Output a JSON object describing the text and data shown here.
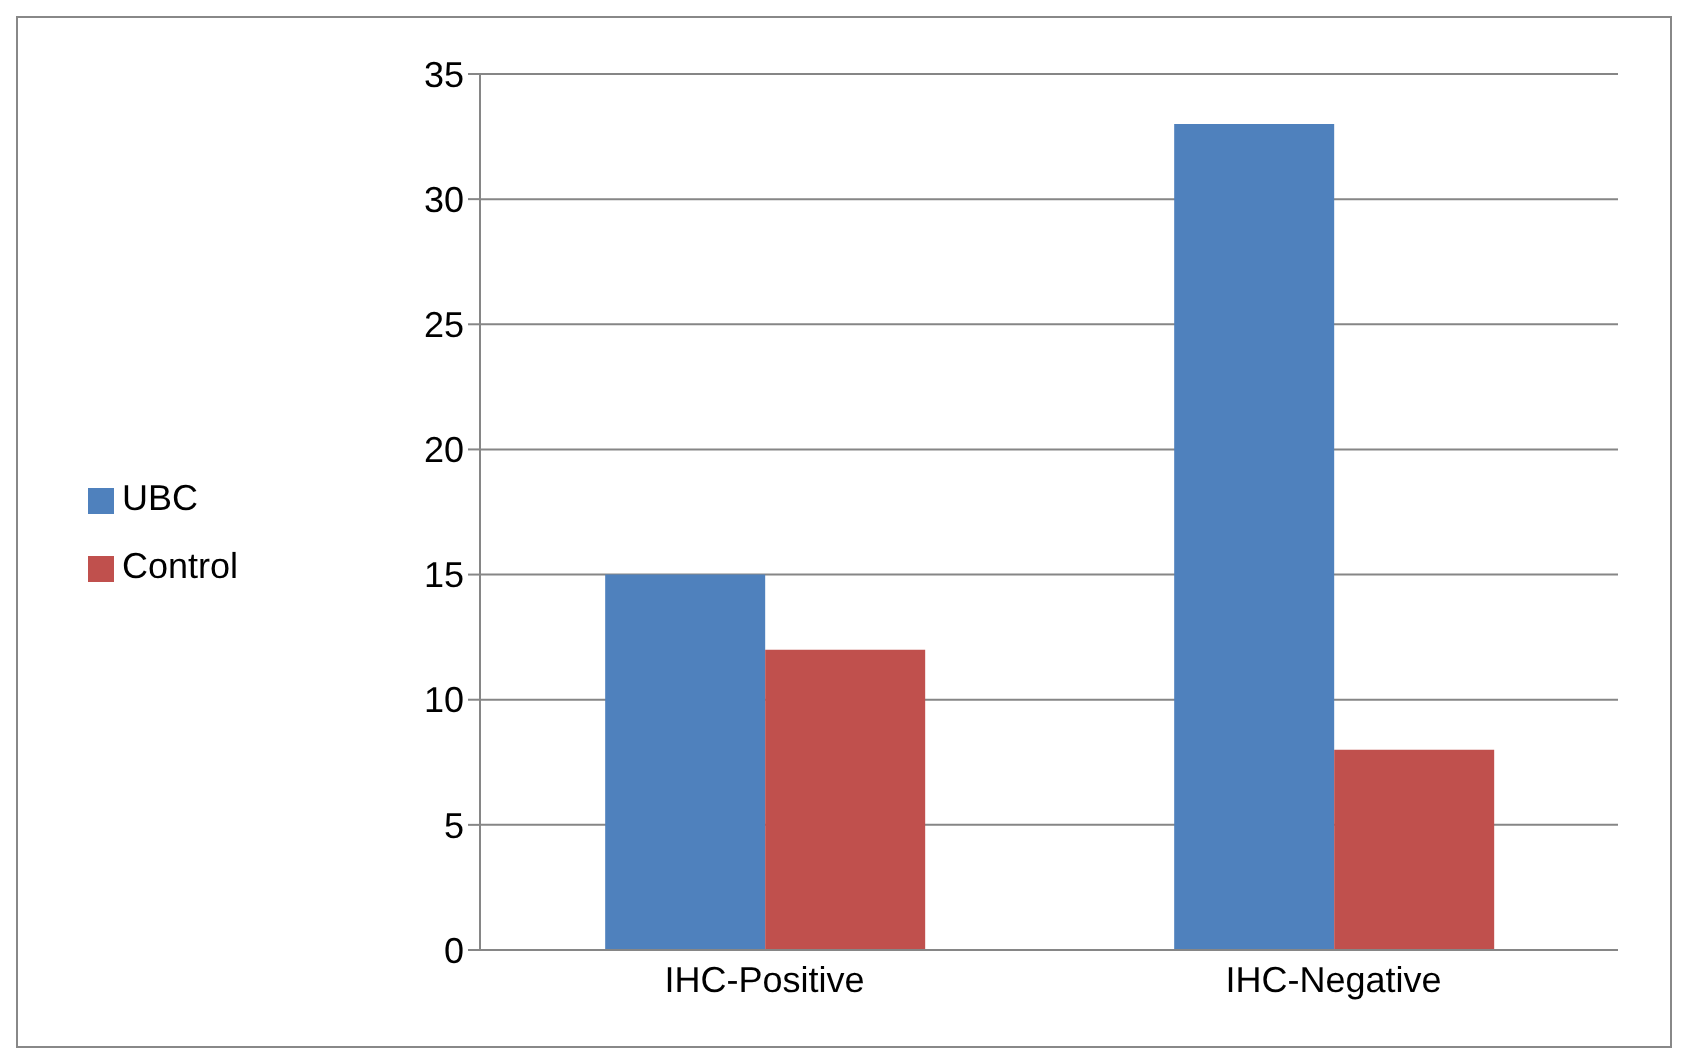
{
  "chart_data": {
    "type": "bar",
    "categories": [
      "IHC-Positive",
      "IHC-Negative"
    ],
    "series": [
      {
        "name": "UBC",
        "color": "#4f81bd",
        "values": [
          15,
          33
        ]
      },
      {
        "name": "Control",
        "color": "#c0504d",
        "values": [
          12,
          8
        ]
      }
    ],
    "ylim": [
      0,
      35
    ],
    "yticks": [
      0,
      5,
      10,
      15,
      20,
      25,
      30,
      35
    ],
    "grid": "y",
    "legend": "left"
  }
}
